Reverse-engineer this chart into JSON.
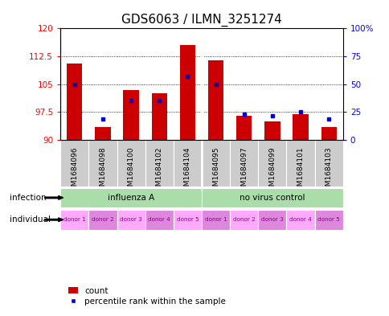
{
  "title": "GDS6063 / ILMN_3251274",
  "samples": [
    "GSM1684096",
    "GSM1684098",
    "GSM1684100",
    "GSM1684102",
    "GSM1684104",
    "GSM1684095",
    "GSM1684097",
    "GSM1684099",
    "GSM1684101",
    "GSM1684103"
  ],
  "red_values": [
    110.5,
    93.5,
    103.5,
    102.5,
    115.5,
    111.5,
    96.5,
    95.0,
    97.0,
    93.5
  ],
  "blue_values": [
    105.0,
    95.5,
    100.5,
    100.5,
    107.0,
    105.0,
    97.0,
    96.5,
    97.5,
    95.5
  ],
  "ylim_left": [
    90,
    120
  ],
  "ylim_right": [
    0,
    100
  ],
  "yticks_left": [
    90,
    97.5,
    105,
    112.5,
    120
  ],
  "yticks_right": [
    0,
    25,
    50,
    75,
    100
  ],
  "infection_groups": [
    {
      "label": "influenza A",
      "start": 0,
      "end": 5
    },
    {
      "label": "no virus control",
      "start": 5,
      "end": 10
    }
  ],
  "donors": [
    "donor 1",
    "donor 2",
    "donor 3",
    "donor 4",
    "donor 5",
    "donor 1",
    "donor 2",
    "donor 3",
    "donor 4",
    "donor 5"
  ],
  "bar_color": "#CC0000",
  "dot_color": "#0000CC",
  "plot_bg": "#FFFFFF",
  "sample_bg": "#CCCCCC",
  "inf_color": "#AADDAA",
  "don_color_odd": "#FFAAFF",
  "don_color_even": "#DD88DD",
  "tick_fontsize": 7.5,
  "title_fontsize": 11,
  "sample_fontsize": 6.5,
  "annot_fontsize": 7.5,
  "legend_fontsize": 7.5
}
